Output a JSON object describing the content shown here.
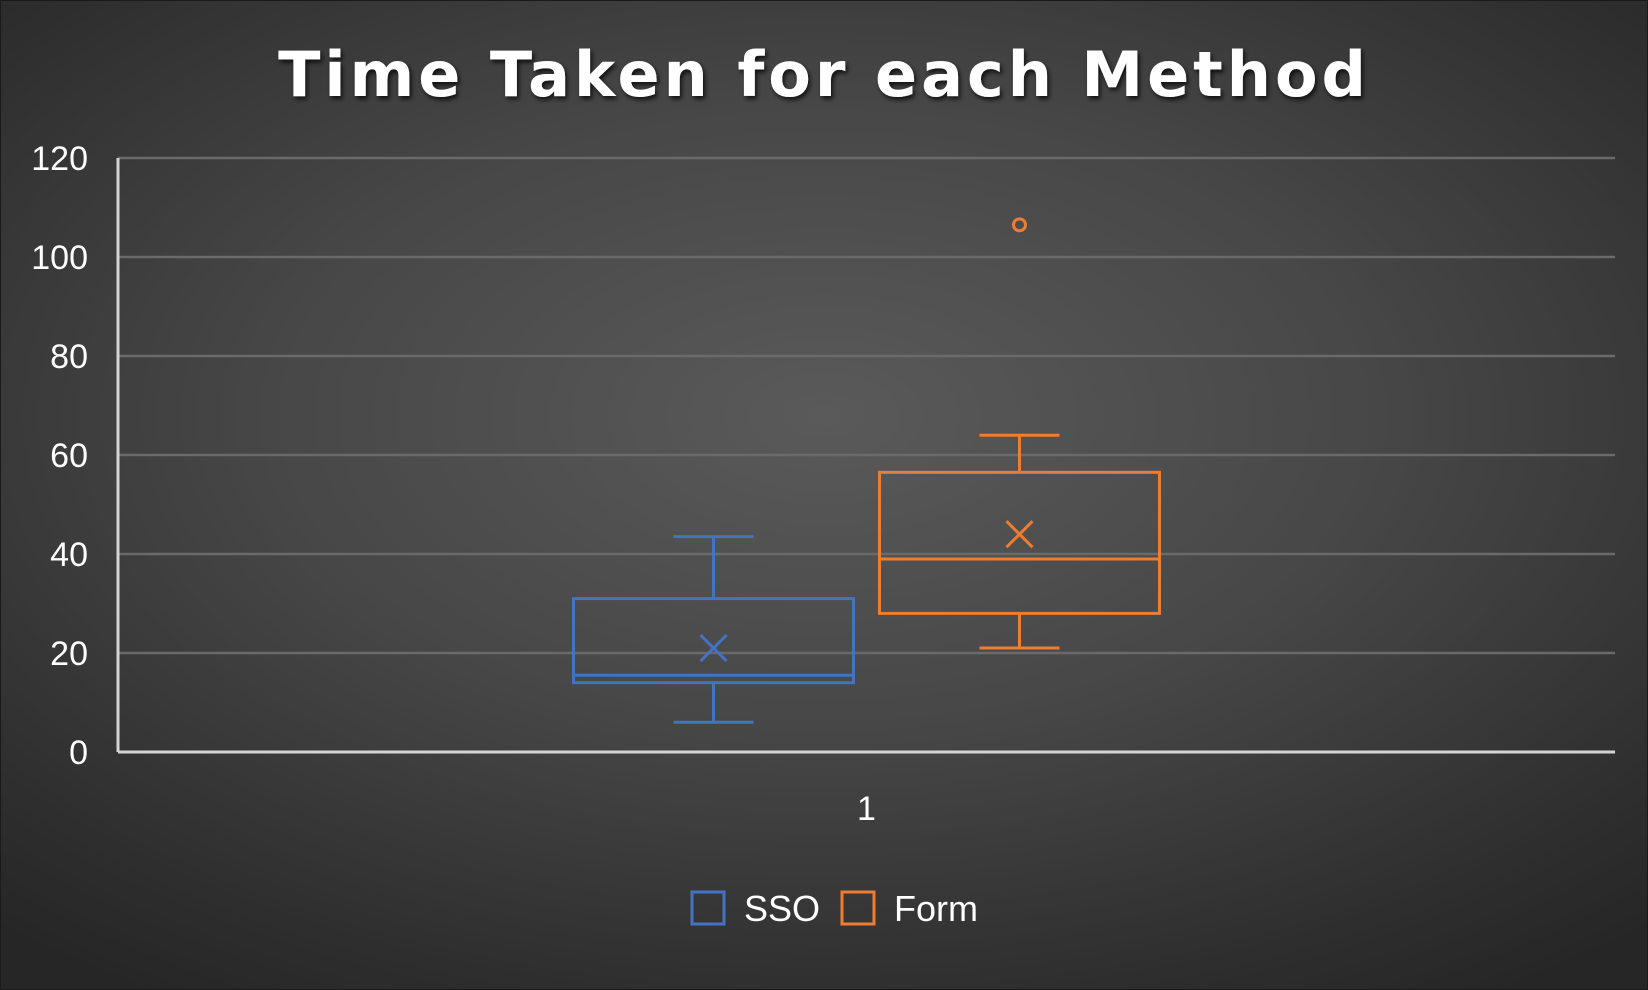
{
  "chart_data": {
    "type": "box",
    "title": "Time Taken for each Method",
    "xlabel": "",
    "ylabel": "",
    "ylim": [
      0,
      120
    ],
    "yticks": [
      0,
      20,
      40,
      60,
      80,
      100,
      120
    ],
    "categories": [
      "1"
    ],
    "grid": true,
    "legend_position": "bottom",
    "series": [
      {
        "name": "SSO",
        "color": "#4472c4",
        "min": 6,
        "q1": 14,
        "median": 15.5,
        "q3": 31,
        "max": 43.5,
        "mean": 21,
        "outliers": []
      },
      {
        "name": "Form",
        "color": "#ed7d31",
        "min": 21,
        "q1": 28,
        "median": 39,
        "q3": 56.5,
        "max": 64,
        "mean": 44,
        "outliers": [
          106.5
        ]
      }
    ]
  }
}
